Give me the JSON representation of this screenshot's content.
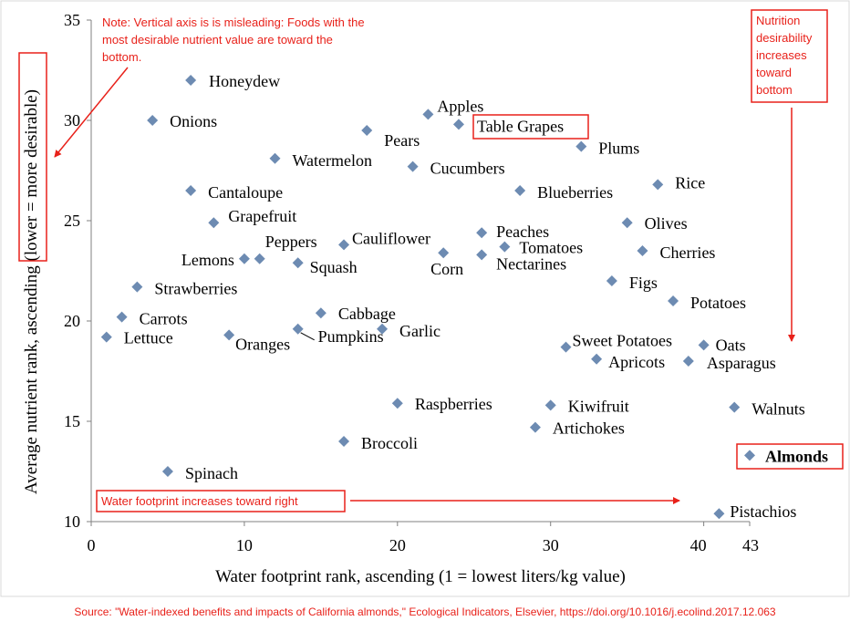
{
  "chart_data": {
    "type": "scatter",
    "xlabel": "Water footprint rank, ascending (1 = lowest liters/kg value)",
    "ylabel_parts": [
      "Average nutrient rank, ascending ",
      "(lower = more desirable)"
    ],
    "xlim": [
      0,
      43
    ],
    "ylim": [
      10,
      35
    ],
    "xticks": [
      "0",
      "10",
      "20",
      "30",
      "40",
      "43"
    ],
    "yticks": [
      "10",
      "15",
      "20",
      "25",
      "30",
      "35"
    ],
    "grid": false,
    "marker_color": "#6d8bb2",
    "points": [
      {
        "label": "Honeydew",
        "x": 6.5,
        "y": 32
      },
      {
        "label": "Onions",
        "x": 4,
        "y": 30
      },
      {
        "label": "Apples",
        "x": 22,
        "y": 30.3
      },
      {
        "label": "Pears",
        "x": 18,
        "y": 29.5
      },
      {
        "label": "Table Grapes",
        "x": 24,
        "y": 29.8,
        "boxed": true
      },
      {
        "label": "Plums",
        "x": 32,
        "y": 28.7
      },
      {
        "label": "Watermelon",
        "x": 12,
        "y": 28.1
      },
      {
        "label": "Cucumbers",
        "x": 21,
        "y": 27.7
      },
      {
        "label": "Cantaloupe",
        "x": 6.5,
        "y": 26.5
      },
      {
        "label": "Blueberries",
        "x": 28,
        "y": 26.5
      },
      {
        "label": "Rice",
        "x": 37,
        "y": 26.8
      },
      {
        "label": "Grapefruit",
        "x": 8,
        "y": 24.9
      },
      {
        "label": "Olives",
        "x": 35,
        "y": 24.9
      },
      {
        "label": "Peaches",
        "x": 25.5,
        "y": 24.4
      },
      {
        "label": "Cauliflower",
        "x": 16.5,
        "y": 23.8
      },
      {
        "label": "Peppers",
        "x": 11,
        "y": 23.1
      },
      {
        "label": "Lemons",
        "x": 10,
        "y": 23.1
      },
      {
        "label": "Tomatoes",
        "x": 27,
        "y": 23.7
      },
      {
        "label": "Corn",
        "x": 23,
        "y": 23.4
      },
      {
        "label": "Nectarines",
        "x": 25.5,
        "y": 23.3
      },
      {
        "label": "Cherries",
        "x": 36,
        "y": 23.5
      },
      {
        "label": "Squash",
        "x": 13.5,
        "y": 22.9
      },
      {
        "label": "Figs",
        "x": 34,
        "y": 22
      },
      {
        "label": "Strawberries",
        "x": 3,
        "y": 21.7
      },
      {
        "label": "Potatoes",
        "x": 38,
        "y": 21
      },
      {
        "label": "Cabbage",
        "x": 15,
        "y": 20.4
      },
      {
        "label": "Carrots",
        "x": 2,
        "y": 20.2
      },
      {
        "label": "Garlic",
        "x": 19,
        "y": 19.6
      },
      {
        "label": "Pumpkins",
        "x": 13.5,
        "y": 19.6
      },
      {
        "label": "Oranges",
        "x": 9,
        "y": 19.3
      },
      {
        "label": "Lettuce",
        "x": 1,
        "y": 19.2
      },
      {
        "label": "Sweet Potatoes",
        "x": 31,
        "y": 18.7
      },
      {
        "label": "Oats",
        "x": 40,
        "y": 18.8
      },
      {
        "label": "Apricots",
        "x": 33,
        "y": 18.1
      },
      {
        "label": "Asparagus",
        "x": 39,
        "y": 18
      },
      {
        "label": "Raspberries",
        "x": 20,
        "y": 15.9
      },
      {
        "label": "Kiwifruit",
        "x": 30,
        "y": 15.8
      },
      {
        "label": "Walnuts",
        "x": 42,
        "y": 15.7
      },
      {
        "label": "Artichokes",
        "x": 29,
        "y": 14.7
      },
      {
        "label": "Broccoli",
        "x": 16.5,
        "y": 14
      },
      {
        "label": "Almonds",
        "x": 43,
        "y": 13.3,
        "boxed": true,
        "bold": true
      },
      {
        "label": "Spinach",
        "x": 5,
        "y": 12.5
      },
      {
        "label": "Pistachios",
        "x": 41,
        "y": 10.4
      }
    ],
    "annotations": {
      "note_lines": [
        "Note: Vertical axis is is misleading: Foods with the",
        "most desirable nutrient value are toward the",
        "bottom."
      ],
      "nutrition_lines": [
        "Nutrition",
        "desirability",
        "increases",
        "toward",
        "bottom"
      ],
      "water_text": "Water footprint increases toward right"
    },
    "source": "Source: \"Water-indexed benefits and impacts of California almonds,\" Ecological Indicators, Elsevier, https://doi.org/10.1016/j.ecolind.2017.12.063",
    "accent_color": "#e8211a"
  }
}
